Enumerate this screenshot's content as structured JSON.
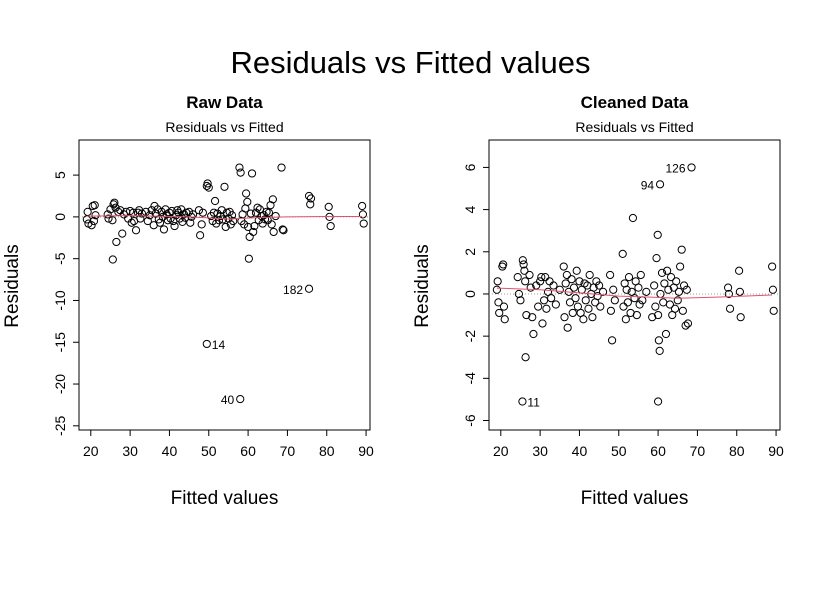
{
  "figure": {
    "title": "Residuals vs Fitted values"
  },
  "chart_data": [
    {
      "type": "scatter",
      "panel_title": "Raw Data",
      "subtitle": "Residuals vs Fitted",
      "xlabel": "Fitted values",
      "ylabel": "Residuals",
      "xlim": [
        17,
        91
      ],
      "ylim": [
        -25.5,
        9.2
      ],
      "xticks": [
        20,
        30,
        40,
        50,
        60,
        70,
        80,
        90
      ],
      "yticks": [
        -25,
        -20,
        -15,
        -10,
        -5,
        0,
        5
      ],
      "smooth_color": "#df536b",
      "smooth": [
        [
          19,
          0.1
        ],
        [
          30,
          0.15
        ],
        [
          45,
          0.0
        ],
        [
          55,
          -0.25
        ],
        [
          62,
          -0.1
        ],
        [
          70,
          0.0
        ],
        [
          80,
          0.05
        ],
        [
          89,
          0.05
        ]
      ],
      "labeled_points": [
        {
          "x": 49.5,
          "y": -15.2,
          "label": "14",
          "side": "right"
        },
        {
          "x": 58.0,
          "y": -21.8,
          "label": "40",
          "side": "left"
        },
        {
          "x": 75.5,
          "y": -8.6,
          "label": "182",
          "side": "left"
        }
      ],
      "points": [
        [
          19.2,
          0.6
        ],
        [
          19.0,
          -0.3
        ],
        [
          19.4,
          -0.8
        ],
        [
          20.2,
          -1.0
        ],
        [
          20.5,
          1.3
        ],
        [
          21.0,
          1.4
        ],
        [
          21.2,
          0.2
        ],
        [
          20.8,
          -0.5
        ],
        [
          24.3,
          0.3
        ],
        [
          24.5,
          -0.2
        ],
        [
          25.0,
          0.9
        ],
        [
          25.5,
          -0.4
        ],
        [
          25.8,
          1.5
        ],
        [
          26.0,
          1.7
        ],
        [
          26.3,
          1.1
        ],
        [
          25.6,
          -5.1
        ],
        [
          26.5,
          -3.0
        ],
        [
          27.0,
          0.6
        ],
        [
          27.5,
          0.8
        ],
        [
          28.0,
          -2.0
        ],
        [
          28.4,
          0.3
        ],
        [
          29.0,
          0.6
        ],
        [
          29.5,
          -0.2
        ],
        [
          30.0,
          0.7
        ],
        [
          30.4,
          -0.7
        ],
        [
          30.8,
          0.5
        ],
        [
          31.0,
          -0.5
        ],
        [
          31.5,
          -1.6
        ],
        [
          32.0,
          0.5
        ],
        [
          32.3,
          0.8
        ],
        [
          32.6,
          -0.2
        ],
        [
          33.0,
          0.4
        ],
        [
          34.0,
          0.6
        ],
        [
          34.5,
          -0.5
        ],
        [
          35.0,
          0.2
        ],
        [
          35.5,
          0.8
        ],
        [
          36.0,
          -1.0
        ],
        [
          36.2,
          1.3
        ],
        [
          36.5,
          0.4
        ],
        [
          37.0,
          0.9
        ],
        [
          37.3,
          -0.3
        ],
        [
          37.6,
          -0.7
        ],
        [
          38.0,
          0.6
        ],
        [
          38.3,
          0.0
        ],
        [
          38.6,
          -1.5
        ],
        [
          39.0,
          0.9
        ],
        [
          39.3,
          0.3
        ],
        [
          39.6,
          -0.4
        ],
        [
          40.0,
          0.5
        ],
        [
          40.3,
          -0.2
        ],
        [
          40.6,
          0.7
        ],
        [
          41.0,
          -0.5
        ],
        [
          41.3,
          -1.1
        ],
        [
          41.7,
          0.2
        ],
        [
          42.0,
          0.8
        ],
        [
          42.3,
          0.5
        ],
        [
          42.6,
          -0.2
        ],
        [
          43.0,
          0.9
        ],
        [
          43.3,
          -0.6
        ],
        [
          43.7,
          0.3
        ],
        [
          44.0,
          -0.1
        ],
        [
          44.3,
          0.5
        ],
        [
          45.0,
          0.6
        ],
        [
          45.3,
          -0.7
        ],
        [
          45.6,
          0.0
        ],
        [
          46.0,
          0.3
        ],
        [
          47.5,
          0.8
        ],
        [
          47.8,
          -2.2
        ],
        [
          48.2,
          -0.9
        ],
        [
          48.5,
          0.5
        ],
        [
          49.5,
          3.7
        ],
        [
          49.7,
          4.0
        ],
        [
          50.0,
          3.5
        ],
        [
          50.6,
          0.1
        ],
        [
          51.0,
          -0.5
        ],
        [
          51.3,
          0.5
        ],
        [
          51.6,
          1.9
        ],
        [
          51.9,
          -0.8
        ],
        [
          52.2,
          0.4
        ],
        [
          52.6,
          -0.4
        ],
        [
          53.0,
          0.1
        ],
        [
          53.3,
          0.8
        ],
        [
          53.6,
          -0.3
        ],
        [
          54.0,
          3.6
        ],
        [
          54.3,
          -1.2
        ],
        [
          54.6,
          0.5
        ],
        [
          55.0,
          -0.2
        ],
        [
          55.3,
          0.6
        ],
        [
          55.6,
          -0.9
        ],
        [
          55.9,
          0.2
        ],
        [
          56.2,
          -0.5
        ],
        [
          57.8,
          5.9
        ],
        [
          58.1,
          5.3
        ],
        [
          58.3,
          -0.5
        ],
        [
          58.6,
          0.3
        ],
        [
          59.0,
          -0.9
        ],
        [
          59.3,
          1.0
        ],
        [
          59.5,
          2.8
        ],
        [
          59.8,
          1.8
        ],
        [
          60.0,
          -1.2
        ],
        [
          60.2,
          -5.0
        ],
        [
          60.4,
          -2.4
        ],
        [
          60.7,
          0.4
        ],
        [
          61.0,
          5.2
        ],
        [
          61.3,
          -1.8
        ],
        [
          61.6,
          -1.1
        ],
        [
          62.0,
          0.5
        ],
        [
          62.4,
          1.1
        ],
        [
          62.7,
          -0.4
        ],
        [
          63.0,
          0.9
        ],
        [
          63.4,
          0.1
        ],
        [
          63.7,
          -0.8
        ],
        [
          64.0,
          0.2
        ],
        [
          64.3,
          -0.3
        ],
        [
          64.7,
          0.6
        ],
        [
          65.0,
          -0.4
        ],
        [
          65.3,
          0.5
        ],
        [
          65.7,
          1.4
        ],
        [
          66.0,
          -0.9
        ],
        [
          66.3,
          2.1
        ],
        [
          66.5,
          -1.8
        ],
        [
          67.0,
          0.1
        ],
        [
          68.5,
          5.9
        ],
        [
          68.8,
          -1.5
        ],
        [
          69.0,
          -1.6
        ],
        [
          75.5,
          2.5
        ],
        [
          75.8,
          1.5
        ],
        [
          76.0,
          2.2
        ],
        [
          80.5,
          1.2
        ],
        [
          80.7,
          0.0
        ],
        [
          81.0,
          -1.1
        ],
        [
          89.0,
          1.3
        ],
        [
          89.2,
          0.3
        ],
        [
          89.4,
          -0.8
        ]
      ]
    },
    {
      "type": "scatter",
      "panel_title": "Cleaned Data",
      "subtitle": "Residuals vs Fitted",
      "xlabel": "Fitted values",
      "ylabel": "Residuals",
      "xlim": [
        17,
        91
      ],
      "ylim": [
        -6.45,
        7.3
      ],
      "xticks": [
        20,
        30,
        40,
        50,
        60,
        70,
        80,
        90
      ],
      "yticks": [
        -6,
        -4,
        -2,
        0,
        2,
        4,
        6
      ],
      "smooth_color": "#df536b",
      "smooth": [
        [
          19,
          0.28
        ],
        [
          30,
          0.2
        ],
        [
          40,
          0.05
        ],
        [
          50,
          -0.1
        ],
        [
          58,
          -0.15
        ],
        [
          65,
          -0.2
        ],
        [
          75,
          -0.15
        ],
        [
          89,
          -0.05
        ]
      ],
      "labeled_points": [
        {
          "x": 68.5,
          "y": 6.0,
          "label": "126",
          "side": "left"
        },
        {
          "x": 60.5,
          "y": 5.2,
          "label": "94",
          "side": "left"
        },
        {
          "x": 25.5,
          "y": -5.1,
          "label": "11",
          "side": "right"
        }
      ],
      "points": [
        [
          19.2,
          0.6
        ],
        [
          19.0,
          0.2
        ],
        [
          19.4,
          -0.4
        ],
        [
          19.6,
          -0.9
        ],
        [
          20.4,
          1.3
        ],
        [
          20.6,
          1.4
        ],
        [
          20.8,
          -0.6
        ],
        [
          21.0,
          -1.2
        ],
        [
          24.3,
          0.8
        ],
        [
          24.6,
          0.0
        ],
        [
          25.0,
          -0.3
        ],
        [
          25.6,
          1.6
        ],
        [
          25.8,
          1.4
        ],
        [
          26.0,
          1.1
        ],
        [
          26.2,
          0.6
        ],
        [
          26.5,
          -1.0
        ],
        [
          26.3,
          -3.0
        ],
        [
          27.3,
          0.9
        ],
        [
          27.6,
          0.3
        ],
        [
          28.0,
          -1.1
        ],
        [
          28.3,
          -1.9
        ],
        [
          29.0,
          0.4
        ],
        [
          29.5,
          -0.6
        ],
        [
          30.0,
          0.6
        ],
        [
          30.3,
          0.8
        ],
        [
          30.6,
          -1.4
        ],
        [
          31.0,
          -0.3
        ],
        [
          31.3,
          0.8
        ],
        [
          31.6,
          -0.7
        ],
        [
          32.0,
          0.1
        ],
        [
          32.4,
          0.6
        ],
        [
          32.8,
          -0.2
        ],
        [
          33.4,
          0.4
        ],
        [
          34.0,
          -0.5
        ],
        [
          35.0,
          0.2
        ],
        [
          36.0,
          1.3
        ],
        [
          36.2,
          -1.1
        ],
        [
          36.5,
          0.5
        ],
        [
          36.8,
          0.9
        ],
        [
          37.0,
          -1.6
        ],
        [
          37.3,
          0.1
        ],
        [
          37.6,
          -0.4
        ],
        [
          38.0,
          0.7
        ],
        [
          38.3,
          -0.9
        ],
        [
          38.6,
          0.3
        ],
        [
          39.0,
          -0.2
        ],
        [
          39.3,
          1.1
        ],
        [
          39.6,
          -0.6
        ],
        [
          40.0,
          0.6
        ],
        [
          40.3,
          -0.9
        ],
        [
          40.6,
          0.2
        ],
        [
          41.0,
          -1.2
        ],
        [
          41.3,
          0.5
        ],
        [
          41.6,
          -0.3
        ],
        [
          42.0,
          0.4
        ],
        [
          42.3,
          -0.7
        ],
        [
          42.6,
          0.9
        ],
        [
          43.0,
          0.0
        ],
        [
          43.3,
          -1.1
        ],
        [
          43.6,
          0.3
        ],
        [
          44.0,
          -0.4
        ],
        [
          44.3,
          0.6
        ],
        [
          44.6,
          -0.1
        ],
        [
          45.0,
          0.4
        ],
        [
          45.3,
          -0.6
        ],
        [
          46.0,
          0.1
        ],
        [
          47.8,
          0.9
        ],
        [
          48.0,
          -0.8
        ],
        [
          48.3,
          -2.2
        ],
        [
          48.6,
          0.2
        ],
        [
          49.0,
          -0.3
        ],
        [
          51.0,
          1.9
        ],
        [
          51.2,
          -0.6
        ],
        [
          51.5,
          0.5
        ],
        [
          51.8,
          -1.2
        ],
        [
          52.0,
          0.2
        ],
        [
          52.3,
          -0.4
        ],
        [
          52.6,
          0.8
        ],
        [
          53.0,
          -0.9
        ],
        [
          53.3,
          0.1
        ],
        [
          53.6,
          3.6
        ],
        [
          54.0,
          -0.2
        ],
        [
          54.3,
          0.6
        ],
        [
          54.6,
          -1.0
        ],
        [
          55.0,
          0.3
        ],
        [
          55.3,
          -0.5
        ],
        [
          55.6,
          0.9
        ],
        [
          56.0,
          -0.3
        ],
        [
          57.0,
          0.1
        ],
        [
          58.5,
          -1.1
        ],
        [
          59.0,
          0.4
        ],
        [
          59.3,
          -0.6
        ],
        [
          59.6,
          1.7
        ],
        [
          59.9,
          2.8
        ],
        [
          60.0,
          -1.0
        ],
        [
          60.2,
          -2.2
        ],
        [
          60.4,
          -2.7
        ],
        [
          60.6,
          0.0
        ],
        [
          61.0,
          1.0
        ],
        [
          61.3,
          -0.4
        ],
        [
          61.6,
          0.5
        ],
        [
          62.0,
          -1.9
        ],
        [
          62.3,
          1.1
        ],
        [
          62.6,
          0.2
        ],
        [
          63.0,
          -0.5
        ],
        [
          63.3,
          0.8
        ],
        [
          63.6,
          -1.0
        ],
        [
          64.0,
          0.3
        ],
        [
          64.3,
          -0.7
        ],
        [
          64.6,
          0.6
        ],
        [
          65.0,
          -0.3
        ],
        [
          65.3,
          0.1
        ],
        [
          65.6,
          1.3
        ],
        [
          66.0,
          2.1
        ],
        [
          66.3,
          -0.8
        ],
        [
          66.6,
          0.4
        ],
        [
          67.0,
          -1.5
        ],
        [
          67.3,
          0.2
        ],
        [
          67.6,
          -1.4
        ],
        [
          60.0,
          -5.1
        ],
        [
          77.8,
          0.3
        ],
        [
          78.0,
          0.0
        ],
        [
          78.3,
          -0.7
        ],
        [
          80.6,
          1.1
        ],
        [
          80.8,
          0.1
        ],
        [
          81.0,
          -1.1
        ],
        [
          89.0,
          1.3
        ],
        [
          89.2,
          0.2
        ],
        [
          89.4,
          -0.8
        ]
      ]
    }
  ]
}
